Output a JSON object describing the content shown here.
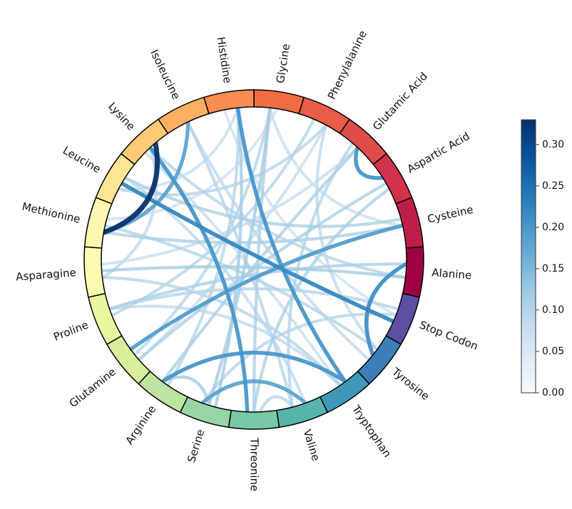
{
  "chart_data": {
    "type": "chord",
    "nodes": [
      {
        "name": "Glycine",
        "color": "#f26c43"
      },
      {
        "name": "Phenylalanine",
        "color": "#e95c47"
      },
      {
        "name": "Glutamic Acid",
        "color": "#de4c4b"
      },
      {
        "name": "Aspartic Acid",
        "color": "#d0314b"
      },
      {
        "name": "Cysteine",
        "color": "#bd1f4a"
      },
      {
        "name": "Alanine",
        "color": "#9e0142"
      },
      {
        "name": "Stop Codon",
        "color": "#5e4fa2"
      },
      {
        "name": "Tyrosine",
        "color": "#3b7fb8"
      },
      {
        "name": "Tryptophan",
        "color": "#3e98b7"
      },
      {
        "name": "Valine",
        "color": "#55b4ab"
      },
      {
        "name": "Threonine",
        "color": "#77c9a5"
      },
      {
        "name": "Serine",
        "color": "#98d5a4"
      },
      {
        "name": "Arginine",
        "color": "#bde4a0"
      },
      {
        "name": "Glutamine",
        "color": "#d7ef9b"
      },
      {
        "name": "Proline",
        "color": "#ebf6a0"
      },
      {
        "name": "Asparagine",
        "color": "#fcfbb4"
      },
      {
        "name": "Methionine",
        "color": "#fff6b0"
      },
      {
        "name": "Leucine",
        "color": "#fee593"
      },
      {
        "name": "Lysine",
        "color": "#fdca76"
      },
      {
        "name": "Isoleucine",
        "color": "#fdb063"
      },
      {
        "name": "Histidine",
        "color": "#f98e52"
      }
    ],
    "links": [
      {
        "source": "Lysine",
        "target": "Methionine",
        "value": 0.33
      },
      {
        "source": "Leucine",
        "target": "Stop Codon",
        "value": 0.22
      },
      {
        "source": "Histidine",
        "target": "Tryptophan",
        "value": 0.2
      },
      {
        "source": "Aspartic Acid",
        "target": "Glutamic Acid",
        "value": 0.2
      },
      {
        "source": "Alanine",
        "target": "Tyrosine",
        "value": 0.21
      },
      {
        "source": "Lysine",
        "target": "Threonine",
        "value": 0.2
      },
      {
        "source": "Cysteine",
        "target": "Glutamine",
        "value": 0.19
      },
      {
        "source": "Arginine",
        "target": "Tryptophan",
        "value": 0.2
      },
      {
        "source": "Serine",
        "target": "Valine",
        "value": 0.18
      },
      {
        "source": "Methionine",
        "target": "Isoleucine",
        "value": 0.18
      },
      {
        "source": "Asparagine",
        "target": "Alanine",
        "value": 0.12
      },
      {
        "source": "Glycine",
        "target": "Threonine",
        "value": 0.11
      },
      {
        "source": "Phenylalanine",
        "target": "Proline",
        "value": 0.1
      },
      {
        "source": "Glutamic Acid",
        "target": "Arginine",
        "value": 0.11
      },
      {
        "source": "Leucine",
        "target": "Cysteine",
        "value": 0.11
      },
      {
        "source": "Histidine",
        "target": "Serine",
        "value": 0.12
      },
      {
        "source": "Isoleucine",
        "target": "Valine",
        "value": 0.1
      },
      {
        "source": "Proline",
        "target": "Stop Codon",
        "value": 0.1
      },
      {
        "source": "Glutamine",
        "target": "Aspartic Acid",
        "value": 0.11
      },
      {
        "source": "Tyrosine",
        "target": "Methionine",
        "value": 0.1
      },
      {
        "source": "Lysine",
        "target": "Alanine",
        "value": 0.1
      },
      {
        "source": "Glycine",
        "target": "Serine",
        "value": 0.12
      },
      {
        "source": "Phenylalanine",
        "target": "Leucine",
        "value": 0.1
      },
      {
        "source": "Asparagine",
        "target": "Tryptophan",
        "value": 0.1
      },
      {
        "source": "Threonine",
        "target": "Aspartic Acid",
        "value": 0.11
      },
      {
        "source": "Arginine",
        "target": "Histidine",
        "value": 0.1
      },
      {
        "source": "Valine",
        "target": "Glutamic Acid",
        "value": 0.1
      },
      {
        "source": "Proline",
        "target": "Alanine",
        "value": 0.11
      },
      {
        "source": "Glycine",
        "target": "Glutamine",
        "value": 0.1
      },
      {
        "source": "Stop Codon",
        "target": "Serine",
        "value": 0.1
      },
      {
        "source": "Methionine",
        "target": "Cysteine",
        "value": 0.11
      },
      {
        "source": "Isoleucine",
        "target": "Tyrosine",
        "value": 0.09
      },
      {
        "source": "Histidine",
        "target": "Leucine",
        "value": 0.08
      },
      {
        "source": "Serine",
        "target": "Arginine",
        "value": 0.12
      },
      {
        "source": "Phenylalanine",
        "target": "Tyrosine",
        "value": 0.09
      },
      {
        "source": "Glycine",
        "target": "Cysteine",
        "value": 0.08
      },
      {
        "source": "Valine",
        "target": "Threonine",
        "value": 0.1
      },
      {
        "source": "Asparagine",
        "target": "Lysine",
        "value": 0.09
      },
      {
        "source": "Glutamic Acid",
        "target": "Asparagine",
        "value": 0.08
      },
      {
        "source": "Tryptophan",
        "target": "Proline",
        "value": 0.09
      },
      {
        "source": "Phenylalanine",
        "target": "Glutamine",
        "value": 0.08
      },
      {
        "source": "Histidine",
        "target": "Stop Codon",
        "value": 0.07
      },
      {
        "source": "Lysine",
        "target": "Tryptophan",
        "value": 0.08
      },
      {
        "source": "Leucine",
        "target": "Valine",
        "value": 0.09
      },
      {
        "source": "Glycine",
        "target": "Methionine",
        "value": 0.07
      }
    ],
    "colorbar": {
      "min": 0.0,
      "max": 0.33,
      "ticks": [
        "0.00",
        "0.05",
        "0.10",
        "0.15",
        "0.20",
        "0.25",
        "0.30"
      ],
      "colormap": [
        "#f7fbff",
        "#deebf7",
        "#c6dbef",
        "#9ecae1",
        "#6baed6",
        "#4292c6",
        "#2171b5",
        "#08519c",
        "#08306b"
      ]
    },
    "ring_outline_color": "#000000"
  }
}
